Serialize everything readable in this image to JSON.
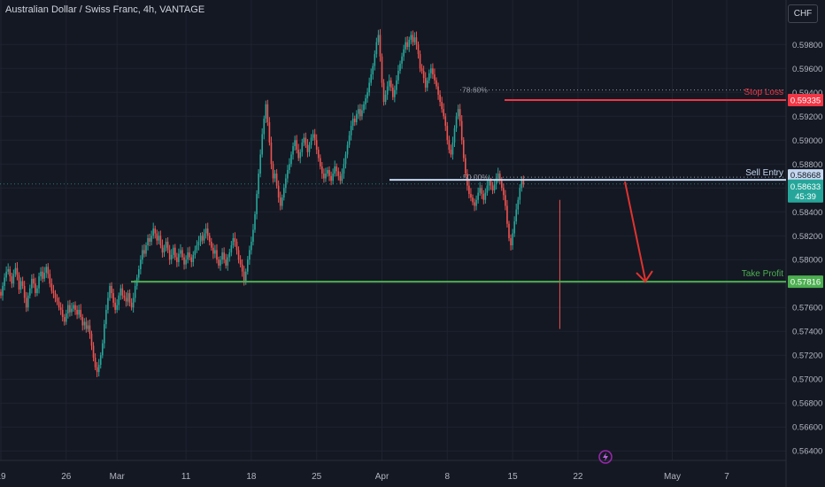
{
  "header": {
    "title": "Australian Dollar / Swiss Franc, 4h, VANTAGE",
    "currency": "CHF"
  },
  "colors": {
    "up": "#26a69a",
    "down": "#ef5350",
    "bg": "#141823",
    "grid": "#1f2330",
    "stop": "#f23645",
    "take": "#4caf50",
    "entry": "#c5d8f0",
    "arrow": "#e0332f"
  },
  "chart_data": {
    "type": "candlestick",
    "title": "Australian Dollar / Swiss Franc, 4h, VANTAGE",
    "ylabel": "CHF",
    "ylim": [
      0.5632,
      0.5998
    ],
    "y_ticks": [
      "0.59800",
      "0.59600",
      "0.59400",
      "0.59200",
      "0.59000",
      "0.58800",
      "0.58600",
      "0.58400",
      "0.58200",
      "0.58000",
      "0.57800",
      "0.57600",
      "0.57400",
      "0.57200",
      "0.57000",
      "0.56800",
      "0.56600",
      "0.56400"
    ],
    "x_ticks": [
      {
        "label": "19",
        "idx": 0
      },
      {
        "label": "26",
        "idx": 36
      },
      {
        "label": "Mar",
        "idx": 64
      },
      {
        "label": "11",
        "idx": 102
      },
      {
        "label": "18",
        "idx": 138
      },
      {
        "label": "25",
        "idx": 174
      },
      {
        "label": "Apr",
        "idx": 210
      },
      {
        "label": "8",
        "idx": 246
      },
      {
        "label": "15",
        "idx": 282
      },
      {
        "label": "22",
        "idx": 318
      },
      {
        "label": "May",
        "idx": 370
      },
      {
        "label": "7",
        "idx": 400
      }
    ],
    "series": [
      {
        "name": "AUDCHF",
        "close": [
          0.577,
          0.5778,
          0.5785,
          0.579,
          0.5792,
          0.5786,
          0.578,
          0.5788,
          0.5793,
          0.5787,
          0.5775,
          0.5782,
          0.5778,
          0.5768,
          0.576,
          0.577,
          0.5776,
          0.5784,
          0.578,
          0.5772,
          0.5776,
          0.5786,
          0.579,
          0.5784,
          0.5789,
          0.5794,
          0.5788,
          0.578,
          0.5774,
          0.5772,
          0.5768,
          0.5765,
          0.576,
          0.5758,
          0.5752,
          0.5748,
          0.5755,
          0.5762,
          0.5756,
          0.5759,
          0.5762,
          0.5758,
          0.5754,
          0.5758,
          0.5752,
          0.5745,
          0.5748,
          0.5742,
          0.5745,
          0.5738,
          0.5728,
          0.5718,
          0.571,
          0.5706,
          0.5712,
          0.572,
          0.573,
          0.5746,
          0.5758,
          0.5768,
          0.5778,
          0.5772,
          0.5764,
          0.5758,
          0.5762,
          0.577,
          0.5776,
          0.577,
          0.5768,
          0.5765,
          0.5772,
          0.5764,
          0.576,
          0.5768,
          0.5778,
          0.5785,
          0.5792,
          0.58,
          0.5808,
          0.5805,
          0.5812,
          0.5818,
          0.5815,
          0.582,
          0.5826,
          0.5822,
          0.5816,
          0.582,
          0.5812,
          0.5806,
          0.581,
          0.5815,
          0.5808,
          0.58,
          0.5804,
          0.581,
          0.5802,
          0.5798,
          0.5805,
          0.5808,
          0.5802,
          0.5796,
          0.58,
          0.5806,
          0.5802,
          0.5798,
          0.5804,
          0.5808,
          0.5812,
          0.5815,
          0.582,
          0.5816,
          0.5822,
          0.5826,
          0.582,
          0.5815,
          0.581,
          0.5805,
          0.5808,
          0.58,
          0.5795,
          0.58,
          0.5806,
          0.58,
          0.5795,
          0.5802,
          0.5806,
          0.5812,
          0.5818,
          0.5815,
          0.5808,
          0.58,
          0.5796,
          0.579,
          0.5782,
          0.579,
          0.58,
          0.5808,
          0.5815,
          0.5825,
          0.5838,
          0.5855,
          0.5872,
          0.5888,
          0.5905,
          0.5918,
          0.593,
          0.5915,
          0.5898,
          0.588,
          0.5868,
          0.5872,
          0.5862,
          0.5852,
          0.5845,
          0.5852,
          0.586,
          0.5868,
          0.5875,
          0.588,
          0.5888,
          0.5895,
          0.59,
          0.5892,
          0.5885,
          0.589,
          0.5898,
          0.5902,
          0.5896,
          0.589,
          0.5896,
          0.5902,
          0.5905,
          0.59,
          0.5892,
          0.5885,
          0.5878,
          0.5872,
          0.5868,
          0.5872,
          0.5875,
          0.587,
          0.5866,
          0.5872,
          0.5878,
          0.5874,
          0.587,
          0.5866,
          0.5872,
          0.588,
          0.5888,
          0.5896,
          0.5904,
          0.5912,
          0.5918,
          0.5915,
          0.5922,
          0.5926,
          0.592,
          0.5925,
          0.593,
          0.5935,
          0.594,
          0.5948,
          0.5955,
          0.5962,
          0.5972,
          0.5982,
          0.5988,
          0.597,
          0.5948,
          0.5932,
          0.5938,
          0.5945,
          0.595,
          0.5944,
          0.5936,
          0.5942,
          0.595,
          0.5958,
          0.5964,
          0.597,
          0.5976,
          0.5982,
          0.5978,
          0.5984,
          0.5988,
          0.5982,
          0.5986,
          0.598,
          0.5972,
          0.596,
          0.5958,
          0.5952,
          0.5944,
          0.595,
          0.5956,
          0.596,
          0.5955,
          0.595,
          0.5945,
          0.5938,
          0.5932,
          0.5926,
          0.592,
          0.5912,
          0.59,
          0.5892,
          0.5888,
          0.5898,
          0.591,
          0.592,
          0.5926,
          0.5916,
          0.59,
          0.5885,
          0.5872,
          0.5862,
          0.5855,
          0.5852,
          0.5848,
          0.5845,
          0.585,
          0.5856,
          0.586,
          0.5855,
          0.585,
          0.5856,
          0.5862,
          0.5866,
          0.5862,
          0.5858,
          0.5863,
          0.5868,
          0.5872,
          0.5866,
          0.586,
          0.5854,
          0.5845,
          0.583,
          0.5818,
          0.5812,
          0.5822,
          0.5832,
          0.5842,
          0.585,
          0.586,
          0.5866,
          0.5863
        ]
      }
    ],
    "annotations": {
      "stop_loss": {
        "label": "Stop Loss",
        "price": "0.59335",
        "y": 0.59335
      },
      "sell_entry": {
        "label": "Sell Entry",
        "price": "0.58668",
        "y": 0.58668
      },
      "take_profit": {
        "label": "Take Profit",
        "price": "0.57816",
        "y": 0.57816
      },
      "current": {
        "price": "0.58633",
        "countdown": "45:39",
        "y": 0.58633
      },
      "fib_786": {
        "label": "78.60%",
        "y": 0.5942
      },
      "fib_50": {
        "label": "50.00%",
        "y": 0.5869
      }
    }
  }
}
